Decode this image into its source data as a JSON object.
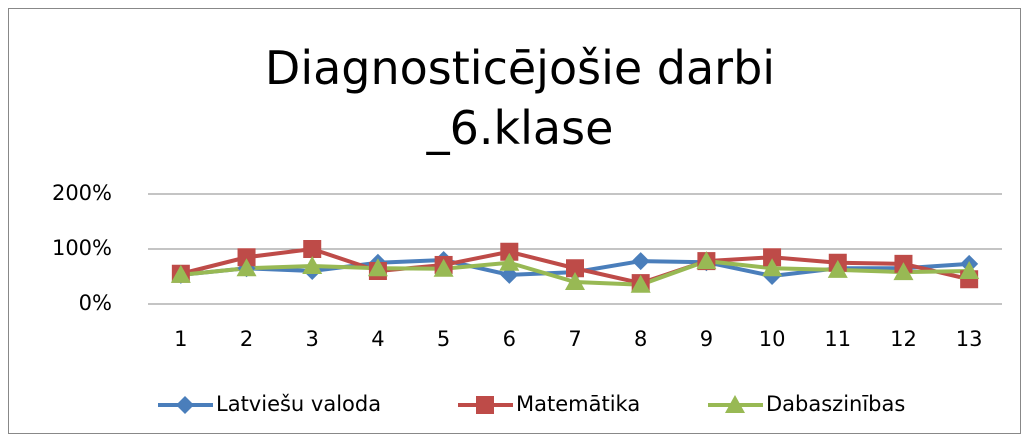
{
  "chart_data": {
    "type": "line",
    "title": "Diagnosticējošie darbi _6.klase",
    "categories": [
      "1",
      "2",
      "3",
      "4",
      "5",
      "6",
      "7",
      "8",
      "9",
      "10",
      "11",
      "12",
      "13"
    ],
    "series": [
      {
        "name": "Latviešu valoda",
        "color": "#4a7ebb",
        "marker": "diamond",
        "values": [
          53,
          65,
          60,
          75,
          80,
          53,
          58,
          78,
          76,
          51,
          65,
          65,
          73
        ]
      },
      {
        "name": "Matemātika",
        "color": "#be4b48",
        "marker": "square",
        "values": [
          55,
          85,
          100,
          60,
          71,
          95,
          65,
          38,
          78,
          85,
          75,
          73,
          45
        ]
      },
      {
        "name": "Dabaszinības",
        "color": "#98b954",
        "marker": "triangle",
        "values": [
          53,
          65,
          69,
          65,
          64,
          75,
          40,
          35,
          78,
          65,
          62,
          58,
          60
        ]
      }
    ],
    "ylim": [
      0,
      200
    ],
    "yticks": [
      {
        "value": 0,
        "label": "0%"
      },
      {
        "value": 100,
        "label": "100%"
      },
      {
        "value": 200,
        "label": "200%"
      }
    ],
    "grid": true,
    "legend": "bottom"
  }
}
